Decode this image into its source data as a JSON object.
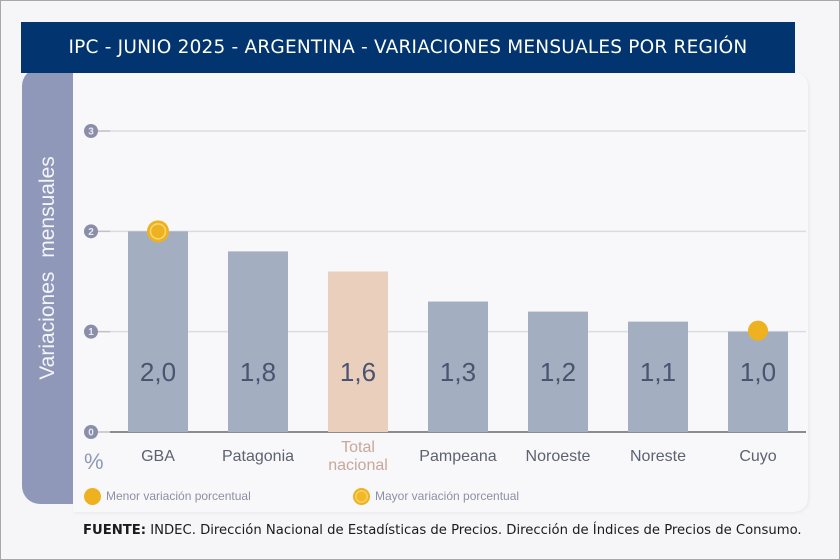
{
  "title": "IPC - JUNIO 2025 - ARGENTINA - VARIACIONES MENSUALES POR REGIÓN",
  "chart_data": {
    "type": "bar",
    "title": "IPC - JUNIO 2025 - ARGENTINA - VARIACIONES MENSUALES POR REGIÓN",
    "categories": [
      "GBA",
      "Patagonia",
      "Total nacional",
      "Pampeana",
      "Noroeste",
      "Noreste",
      "Cuyo"
    ],
    "category_lines": [
      [
        "GBA"
      ],
      [
        "Patagonia"
      ],
      [
        "Total",
        "nacional"
      ],
      [
        "Pampeana"
      ],
      [
        "Noroeste"
      ],
      [
        "Noreste"
      ],
      [
        "Cuyo"
      ]
    ],
    "values": [
      2.0,
      1.8,
      1.6,
      1.3,
      1.2,
      1.1,
      1.0
    ],
    "value_labels": [
      "2,0",
      "1,8",
      "1,6",
      "1,3",
      "1,2",
      "1,1",
      "1,0"
    ],
    "highlight_category": "Total nacional",
    "ylabel": "Variaciones mensuales",
    "y_unit": "%",
    "xlabel": "",
    "ylim": [
      0,
      3
    ],
    "yticks": [
      0,
      1,
      2,
      3
    ],
    "grid": true,
    "markers": [
      {
        "category": "GBA",
        "type": "mayor"
      },
      {
        "category": "Cuyo",
        "type": "menor"
      }
    ],
    "legend": [
      {
        "type": "menor",
        "label": "Menor variación porcentual"
      },
      {
        "type": "mayor",
        "label": "Mayor variación porcentual"
      }
    ],
    "legend_position": "bottom-left",
    "colors": {
      "bar": "#a3aec0",
      "bar_highlight": "#ebcfbd",
      "marker": "#eeb220",
      "title_bg": "#02346f",
      "axis_band": "#8f98b8"
    }
  },
  "footer": {
    "source_label": "FUENTE:",
    "source_text": " INDEC. Dirección Nacional de Estadísticas de Precios. Dirección de Índices de Precios de Consumo."
  }
}
